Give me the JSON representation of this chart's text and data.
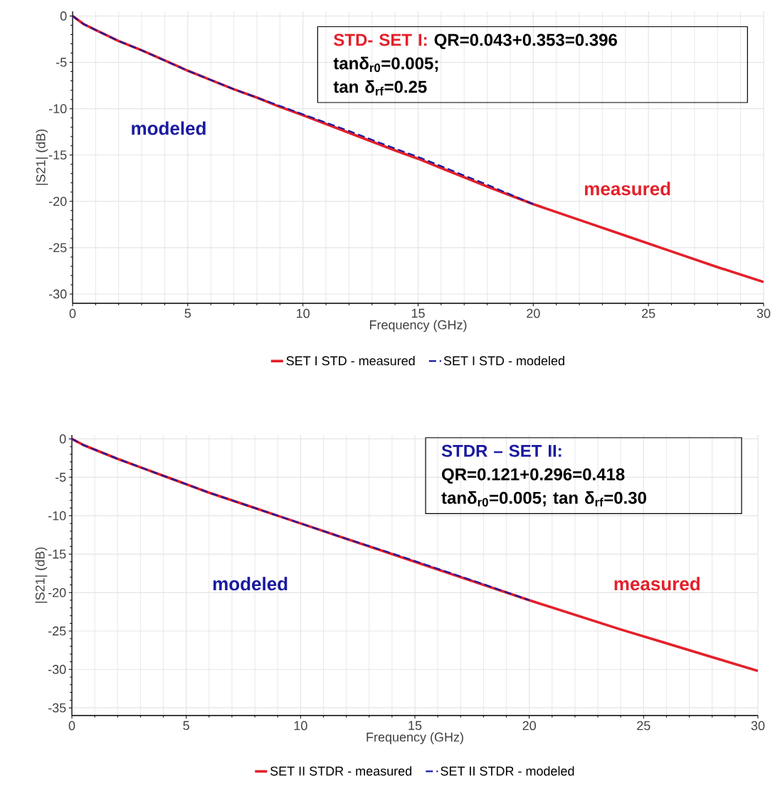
{
  "chart_data": [
    {
      "type": "line",
      "xlabel": "Frequency (GHz)",
      "ylabel": "|S21| (dB)",
      "xlim": [
        0,
        30
      ],
      "xticks": [
        0,
        5,
        10,
        15,
        20,
        25,
        30
      ],
      "ylim": [
        -31,
        0.5
      ],
      "yticks": [
        -30,
        -25,
        -20,
        -15,
        -10,
        -5,
        0
      ],
      "grid": true,
      "legend": "bottom",
      "series": [
        {
          "name": "SET I STD - measured",
          "color": "#e3202a",
          "line_style": "solid",
          "x": [
            0,
            0.5,
            1,
            2,
            3,
            4,
            5,
            6,
            7,
            8,
            9,
            10,
            12,
            14,
            15,
            16,
            18,
            20,
            22,
            24,
            26,
            28,
            30
          ],
          "values": [
            0,
            -0.9,
            -1.5,
            -2.7,
            -3.7,
            -4.8,
            -5.9,
            -6.9,
            -7.9,
            -8.8,
            -9.8,
            -10.7,
            -12.6,
            -14.5,
            -15.4,
            -16.4,
            -18.4,
            -20.3,
            -22.0,
            -23.7,
            -25.4,
            -27.1,
            -28.7
          ]
        },
        {
          "name": "SET I STD - modeled",
          "color": "#1a1aa0",
          "line_style": "dashed",
          "x": [
            0,
            0.5,
            1,
            2,
            3,
            4,
            5,
            6,
            7,
            8,
            9,
            10,
            12,
            14,
            15,
            16,
            18,
            20
          ],
          "values": [
            0,
            -0.9,
            -1.5,
            -2.7,
            -3.7,
            -4.8,
            -5.9,
            -6.9,
            -7.9,
            -8.8,
            -9.7,
            -10.6,
            -12.4,
            -14.3,
            -15.2,
            -16.2,
            -18.2,
            -20.3
          ]
        }
      ],
      "annotations": [
        "STD- SET I:",
        "QR=0.043+0.353=0.396",
        "tanδ$_{r0}$=0.005;",
        "tan δ$_{rf}$=0.25",
        "modeled",
        "measured"
      ]
    },
    {
      "type": "line",
      "xlabel": "Frequency (GHz)",
      "ylabel": "|S21| (dB)",
      "xlim": [
        0,
        30
      ],
      "xticks": [
        0,
        5,
        10,
        15,
        20,
        25,
        30
      ],
      "ylim": [
        -36,
        0.5
      ],
      "yticks": [
        -35,
        -30,
        -25,
        -20,
        -15,
        -10,
        -5,
        0
      ],
      "grid": true,
      "legend": "bottom",
      "series": [
        {
          "name": "SET II STDR - measured",
          "color": "#e3202a",
          "line_style": "solid",
          "x": [
            0,
            0.5,
            1,
            2,
            3,
            4,
            5,
            6,
            7,
            8,
            9,
            10,
            12,
            14,
            16,
            18,
            20,
            22,
            24,
            26,
            28,
            30
          ],
          "values": [
            0,
            -0.8,
            -1.4,
            -2.6,
            -3.7,
            -4.8,
            -5.9,
            -7.0,
            -8.0,
            -9.0,
            -10.0,
            -11.0,
            -13.0,
            -15.0,
            -17.0,
            -19.0,
            -21.0,
            -22.9,
            -24.8,
            -26.6,
            -28.4,
            -30.2
          ]
        },
        {
          "name": "SET II STDR - modeled",
          "color": "#1a1aa0",
          "line_style": "dashed",
          "x": [
            0,
            0.5,
            1,
            2,
            3,
            4,
            5,
            6,
            7,
            8,
            9,
            10,
            12,
            14,
            16,
            18,
            20
          ],
          "values": [
            0,
            -0.8,
            -1.4,
            -2.6,
            -3.7,
            -4.8,
            -5.9,
            -7.0,
            -8.0,
            -9.0,
            -10.0,
            -11.0,
            -13.0,
            -14.9,
            -16.9,
            -18.9,
            -21.0
          ]
        }
      ],
      "annotations": [
        "STDR – SET II:",
        "QR=0.121+0.296=0.418",
        "tanδ$_{r0}$=0.005; tan δ$_{rf}$=0.30",
        "modeled",
        "measured"
      ]
    }
  ]
}
